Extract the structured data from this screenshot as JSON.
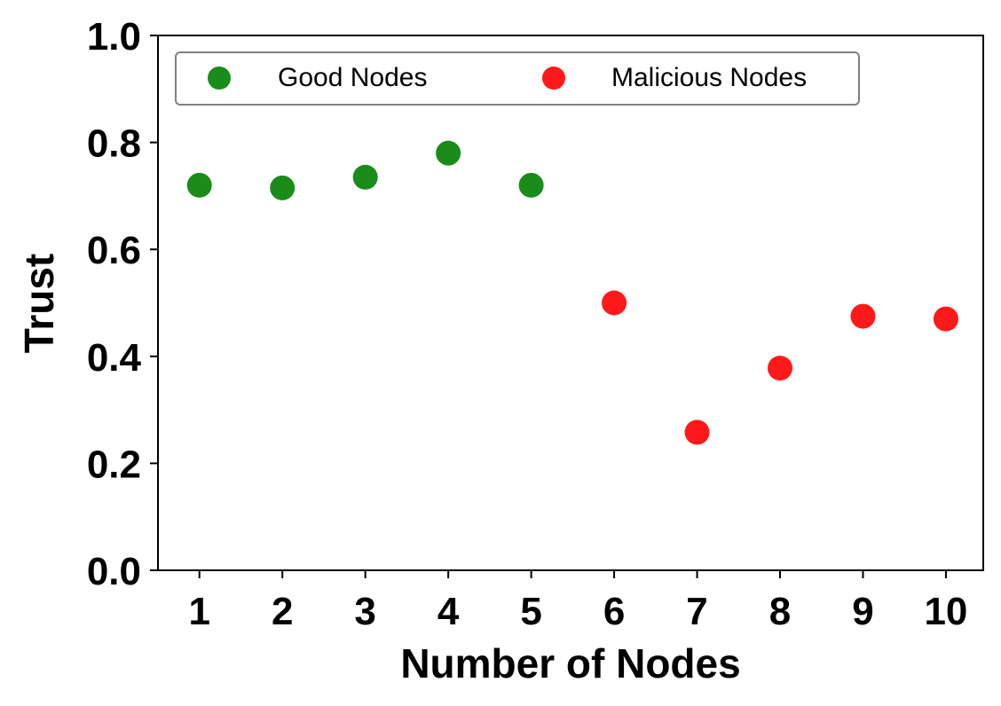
{
  "chart_data": {
    "type": "scatter",
    "title": "",
    "xlabel": "Number of Nodes",
    "ylabel": "Trust",
    "xlim": [
      0.5,
      10.45
    ],
    "ylim": [
      0,
      1
    ],
    "x_ticks": [
      1,
      2,
      3,
      4,
      5,
      6,
      7,
      8,
      9,
      10
    ],
    "y_ticks": [
      "0.0",
      "0.2",
      "0.4",
      "0.6",
      "0.8",
      "1.0"
    ],
    "grid": false,
    "legend_position": "top-left",
    "series": [
      {
        "name": "Good Nodes",
        "color": "#008000",
        "points": [
          {
            "x": 1,
            "y": 0.72
          },
          {
            "x": 2,
            "y": 0.715
          },
          {
            "x": 3,
            "y": 0.735
          },
          {
            "x": 4,
            "y": 0.78
          },
          {
            "x": 5,
            "y": 0.72
          }
        ]
      },
      {
        "name": "Malicious Nodes",
        "color": "#ff0000",
        "points": [
          {
            "x": 6,
            "y": 0.5
          },
          {
            "x": 7,
            "y": 0.258
          },
          {
            "x": 8,
            "y": 0.378
          },
          {
            "x": 9,
            "y": 0.475
          },
          {
            "x": 10,
            "y": 0.47
          }
        ]
      }
    ]
  }
}
